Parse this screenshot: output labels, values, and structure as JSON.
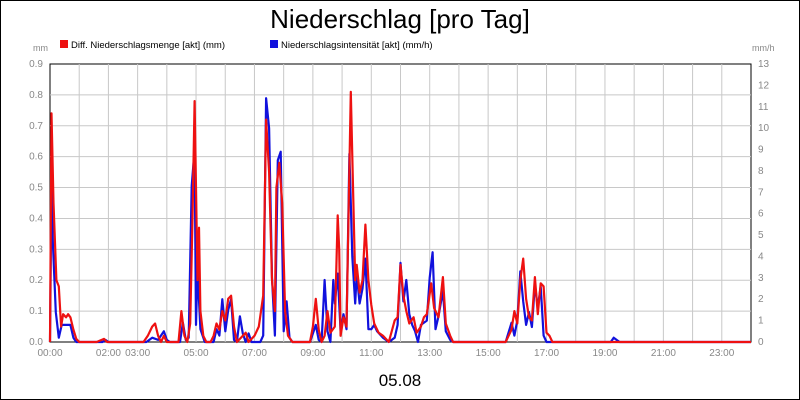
{
  "chart_data": {
    "type": "line",
    "title": "Niederschlag [pro Tag]",
    "xlabel": "05.08",
    "y_left_unit": "mm",
    "y_right_unit": "mm/h",
    "y_left_lim": [
      0,
      0.9
    ],
    "y_left_ticks": [
      "0.0",
      "0.1",
      "0.2",
      "0.3",
      "0.4",
      "0.5",
      "0.6",
      "0.7",
      "0.8",
      "0.9"
    ],
    "y_right_lim": [
      0,
      13
    ],
    "y_right_ticks": [
      "0",
      "1",
      "2",
      "3",
      "4",
      "5",
      "6",
      "7",
      "8",
      "9",
      "10",
      "11",
      "12",
      "13"
    ],
    "x_lim": [
      0,
      24
    ],
    "x_ticks": [
      {
        "h": 0,
        "label": "00:00"
      },
      {
        "h": 2,
        "label": "02:00"
      },
      {
        "h": 3,
        "label": "03:00"
      },
      {
        "h": 5,
        "label": "05:00"
      },
      {
        "h": 7,
        "label": "07:00"
      },
      {
        "h": 9,
        "label": "09:00"
      },
      {
        "h": 11,
        "label": "11:00"
      },
      {
        "h": 13,
        "label": "13:00"
      },
      {
        "h": 15,
        "label": "15:00"
      },
      {
        "h": 17,
        "label": "17:00"
      },
      {
        "h": 19,
        "label": "19:00"
      },
      {
        "h": 21,
        "label": "21:00"
      },
      {
        "h": 23,
        "label": "23:00"
      }
    ],
    "grid": true,
    "legend_position": "top-left",
    "series": [
      {
        "name": "Diff. Niederschlagsmenge [akt] (mm)",
        "color": "#ee1111",
        "axis": "left",
        "points": [
          [
            0,
            0
          ],
          [
            0.05,
            0.74
          ],
          [
            0.12,
            0.45
          ],
          [
            0.22,
            0.2
          ],
          [
            0.3,
            0.18
          ],
          [
            0.38,
            0.05
          ],
          [
            0.45,
            0.09
          ],
          [
            0.55,
            0.08
          ],
          [
            0.62,
            0.09
          ],
          [
            0.7,
            0.08
          ],
          [
            0.8,
            0.04
          ],
          [
            0.9,
            0.01
          ],
          [
            1.0,
            0
          ],
          [
            1.6,
            0
          ],
          [
            1.85,
            0.01
          ],
          [
            1.95,
            0
          ],
          [
            3.2,
            0
          ],
          [
            3.35,
            0.02
          ],
          [
            3.5,
            0.05
          ],
          [
            3.6,
            0.06
          ],
          [
            3.7,
            0.02
          ],
          [
            3.8,
            0
          ],
          [
            3.9,
            0.02
          ],
          [
            4.0,
            0
          ],
          [
            4.4,
            0
          ],
          [
            4.5,
            0.1
          ],
          [
            4.6,
            0.02
          ],
          [
            4.7,
            0
          ],
          [
            4.8,
            0.06
          ],
          [
            4.88,
            0.4
          ],
          [
            4.95,
            0.78
          ],
          [
            5.0,
            0.5
          ],
          [
            5.05,
            0.2
          ],
          [
            5.1,
            0.37
          ],
          [
            5.15,
            0.1
          ],
          [
            5.25,
            0.02
          ],
          [
            5.35,
            0
          ],
          [
            5.5,
            0
          ],
          [
            5.6,
            0.02
          ],
          [
            5.7,
            0.06
          ],
          [
            5.8,
            0.04
          ],
          [
            5.9,
            0.1
          ],
          [
            6.0,
            0.07
          ],
          [
            6.1,
            0.14
          ],
          [
            6.2,
            0.15
          ],
          [
            6.3,
            0.05
          ],
          [
            6.4,
            0
          ],
          [
            6.7,
            0.03
          ],
          [
            6.8,
            0
          ],
          [
            7.0,
            0.02
          ],
          [
            7.15,
            0.05
          ],
          [
            7.3,
            0.15
          ],
          [
            7.4,
            0.72
          ],
          [
            7.5,
            0.55
          ],
          [
            7.6,
            0.2
          ],
          [
            7.7,
            0.1
          ],
          [
            7.75,
            0.5
          ],
          [
            7.85,
            0.58
          ],
          [
            7.95,
            0.45
          ],
          [
            8.05,
            0.1
          ],
          [
            8.15,
            0.02
          ],
          [
            8.3,
            0
          ],
          [
            8.9,
            0
          ],
          [
            9.0,
            0.05
          ],
          [
            9.1,
            0.14
          ],
          [
            9.2,
            0.04
          ],
          [
            9.3,
            0
          ],
          [
            9.4,
            0.02
          ],
          [
            9.5,
            0.1
          ],
          [
            9.6,
            0.03
          ],
          [
            9.75,
            0.05
          ],
          [
            9.85,
            0.41
          ],
          [
            9.9,
            0.3
          ],
          [
            9.95,
            0.02
          ],
          [
            10.05,
            0.08
          ],
          [
            10.15,
            0.05
          ],
          [
            10.3,
            0.81
          ],
          [
            10.35,
            0.6
          ],
          [
            10.45,
            0.2
          ],
          [
            10.5,
            0.25
          ],
          [
            10.6,
            0.16
          ],
          [
            10.7,
            0.2
          ],
          [
            10.8,
            0.38
          ],
          [
            10.9,
            0.2
          ],
          [
            11.0,
            0.12
          ],
          [
            11.1,
            0.06
          ],
          [
            11.25,
            0.03
          ],
          [
            11.4,
            0.02
          ],
          [
            11.6,
            0
          ],
          [
            11.8,
            0.07
          ],
          [
            11.9,
            0.08
          ],
          [
            12.0,
            0.25
          ],
          [
            12.1,
            0.15
          ],
          [
            12.2,
            0.1
          ],
          [
            12.3,
            0.06
          ],
          [
            12.45,
            0.08
          ],
          [
            12.55,
            0.03
          ],
          [
            12.7,
            0.05
          ],
          [
            12.8,
            0.08
          ],
          [
            12.9,
            0.09
          ],
          [
            13.05,
            0.19
          ],
          [
            13.15,
            0.11
          ],
          [
            13.3,
            0.08
          ],
          [
            13.45,
            0.21
          ],
          [
            13.55,
            0.06
          ],
          [
            13.7,
            0.02
          ],
          [
            13.8,
            0
          ],
          [
            15.6,
            0
          ],
          [
            15.8,
            0.04
          ],
          [
            15.9,
            0.1
          ],
          [
            16.0,
            0.06
          ],
          [
            16.1,
            0.2
          ],
          [
            16.2,
            0.27
          ],
          [
            16.3,
            0.14
          ],
          [
            16.4,
            0.08
          ],
          [
            16.5,
            0.07
          ],
          [
            16.6,
            0.21
          ],
          [
            16.7,
            0.09
          ],
          [
            16.8,
            0.19
          ],
          [
            16.9,
            0.18
          ],
          [
            17.0,
            0.03
          ],
          [
            17.1,
            0.02
          ],
          [
            17.2,
            0
          ],
          [
            24,
            0
          ]
        ]
      },
      {
        "name": "Niederschlagsintensität [akt] (mm/h)",
        "color": "#1111dd",
        "axis": "right",
        "points": [
          [
            0,
            0
          ],
          [
            0.05,
            7.4
          ],
          [
            0.1,
            4.6
          ],
          [
            0.2,
            1.4
          ],
          [
            0.3,
            0.2
          ],
          [
            0.4,
            0.8
          ],
          [
            0.5,
            0.8
          ],
          [
            0.6,
            0.8
          ],
          [
            0.7,
            0.8
          ],
          [
            0.8,
            0.2
          ],
          [
            0.9,
            0
          ],
          [
            1.8,
            0
          ],
          [
            1.9,
            0.1
          ],
          [
            2.0,
            0
          ],
          [
            3.3,
            0
          ],
          [
            3.5,
            0.2
          ],
          [
            3.7,
            0.1
          ],
          [
            3.9,
            0.5
          ],
          [
            4.0,
            0.1
          ],
          [
            4.1,
            0
          ],
          [
            4.45,
            0
          ],
          [
            4.55,
            0.9
          ],
          [
            4.65,
            0.1
          ],
          [
            4.75,
            0.2
          ],
          [
            4.85,
            7.3
          ],
          [
            4.95,
            9.0
          ],
          [
            5.0,
            0.8
          ],
          [
            5.05,
            3.4
          ],
          [
            5.15,
            0.6
          ],
          [
            5.3,
            0
          ],
          [
            5.6,
            0
          ],
          [
            5.7,
            0.6
          ],
          [
            5.8,
            0.3
          ],
          [
            5.9,
            2.0
          ],
          [
            6.0,
            0.5
          ],
          [
            6.1,
            1.5
          ],
          [
            6.2,
            2.0
          ],
          [
            6.3,
            0.1
          ],
          [
            6.4,
            0
          ],
          [
            6.5,
            1.2
          ],
          [
            6.6,
            0.4
          ],
          [
            6.7,
            0
          ],
          [
            6.8,
            0.4
          ],
          [
            6.9,
            0
          ],
          [
            7.2,
            0
          ],
          [
            7.3,
            0.3
          ],
          [
            7.4,
            11.4
          ],
          [
            7.5,
            10.0
          ],
          [
            7.6,
            3.0
          ],
          [
            7.7,
            0.3
          ],
          [
            7.8,
            8.5
          ],
          [
            7.9,
            8.9
          ],
          [
            8.0,
            0.5
          ],
          [
            8.1,
            1.9
          ],
          [
            8.2,
            0.2
          ],
          [
            8.3,
            0
          ],
          [
            8.9,
            0
          ],
          [
            9.1,
            0.8
          ],
          [
            9.2,
            0.1
          ],
          [
            9.3,
            0
          ],
          [
            9.4,
            2.9
          ],
          [
            9.5,
            0.5
          ],
          [
            9.6,
            0
          ],
          [
            9.7,
            2.9
          ],
          [
            9.75,
            1.8
          ],
          [
            9.85,
            3.2
          ],
          [
            9.95,
            0.5
          ],
          [
            10.05,
            1.3
          ],
          [
            10.15,
            0.6
          ],
          [
            10.25,
            8.8
          ],
          [
            10.35,
            4.0
          ],
          [
            10.45,
            1.8
          ],
          [
            10.5,
            3.2
          ],
          [
            10.6,
            1.8
          ],
          [
            10.7,
            2.5
          ],
          [
            10.8,
            3.9
          ],
          [
            10.9,
            0.6
          ],
          [
            11.0,
            0.6
          ],
          [
            11.1,
            0.8
          ],
          [
            11.2,
            0.5
          ],
          [
            11.4,
            0.2
          ],
          [
            11.6,
            0
          ],
          [
            11.8,
            0.2
          ],
          [
            11.9,
            0.8
          ],
          [
            12.0,
            3.7
          ],
          [
            12.1,
            1.9
          ],
          [
            12.2,
            2.9
          ],
          [
            12.3,
            1.3
          ],
          [
            12.4,
            0.8
          ],
          [
            12.5,
            0.5
          ],
          [
            12.6,
            0
          ],
          [
            12.7,
            0.8
          ],
          [
            12.9,
            1.0
          ],
          [
            13.0,
            3.0
          ],
          [
            13.1,
            4.2
          ],
          [
            13.2,
            0.6
          ],
          [
            13.3,
            1.2
          ],
          [
            13.45,
            2.4
          ],
          [
            13.55,
            0.5
          ],
          [
            13.7,
            0.1
          ],
          [
            13.8,
            0
          ],
          [
            15.6,
            0
          ],
          [
            15.8,
            0.9
          ],
          [
            15.9,
            0.3
          ],
          [
            16.0,
            1.0
          ],
          [
            16.1,
            3.3
          ],
          [
            16.2,
            1.9
          ],
          [
            16.3,
            0.8
          ],
          [
            16.4,
            1.4
          ],
          [
            16.5,
            0.7
          ],
          [
            16.6,
            2.7
          ],
          [
            16.7,
            1.6
          ],
          [
            16.8,
            2.6
          ],
          [
            16.9,
            0.3
          ],
          [
            17.0,
            0
          ],
          [
            19.2,
            0
          ],
          [
            19.3,
            0.2
          ],
          [
            19.4,
            0.1
          ],
          [
            19.5,
            0
          ],
          [
            24,
            0
          ]
        ]
      }
    ]
  }
}
